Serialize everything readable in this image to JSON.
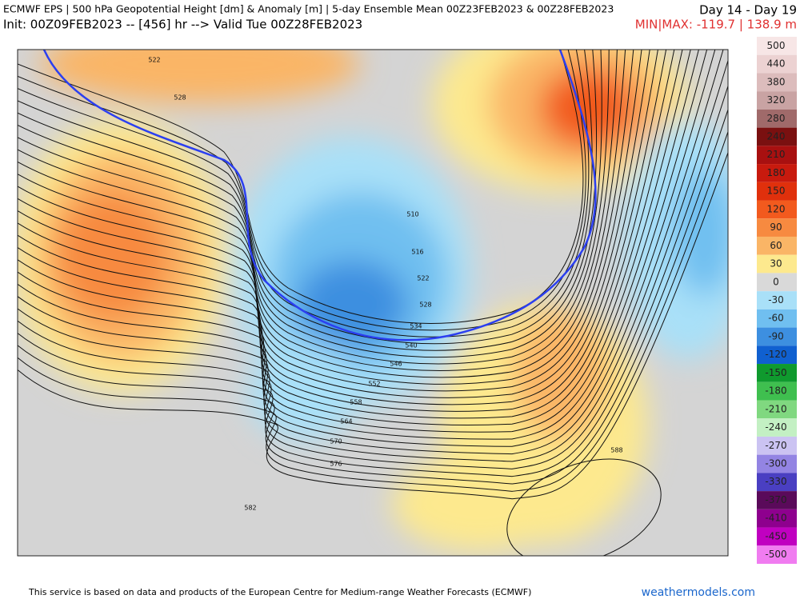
{
  "header": {
    "title": "ECMWF EPS | 500 hPa Geopotential Height [dm] & Anomaly [m] | 5-day Ensemble Mean 00Z23FEB2023 & 00Z28FEB2023",
    "period": "Day 14 - Day 19",
    "init": "Init: 00Z09FEB2023 -- [456] hr --> Valid Tue 00Z28FEB2023",
    "minmax": "MIN|MAX: -119.7 | 138.9 m"
  },
  "colorbar": {
    "labels": [
      "500",
      "440",
      "380",
      "320",
      "280",
      "240",
      "210",
      "180",
      "150",
      "120",
      "90",
      "60",
      "30",
      "0",
      "-30",
      "-60",
      "-90",
      "-120",
      "-150",
      "-180",
      "-210",
      "-240",
      "-270",
      "-300",
      "-330",
      "-370",
      "-410",
      "-450",
      "-500"
    ],
    "colors": [
      "#f7e6e6",
      "#ecd2d2",
      "#dcbcbc",
      "#c9a3a3",
      "#a06a6a",
      "#7a1010",
      "#a81010",
      "#c81a0e",
      "#e0300c",
      "#f25a1e",
      "#f78a40",
      "#fab566",
      "#fde98e",
      "#d9d9d9",
      "#a9e0f8",
      "#70bff0",
      "#3d8fe0",
      "#1060d0",
      "#0f9a2e",
      "#3fbf4f",
      "#80d880",
      "#c3f0c3",
      "#cbc3f2",
      "#9384e3",
      "#4a3fc2",
      "#5a0a5a",
      "#8e008e",
      "#c000c0",
      "#f07cf0"
    ]
  },
  "map": {
    "contour_labels": [
      "522",
      "528",
      "510",
      "516",
      "522",
      "528",
      "534",
      "540",
      "546",
      "552",
      "558",
      "564",
      "570",
      "576",
      "582",
      "588"
    ]
  },
  "footer": {
    "notice": "This service is based on data and products of the European Centre for Medium-range Weather Forecasts (ECMWF)",
    "site": "weathermodels.com"
  }
}
